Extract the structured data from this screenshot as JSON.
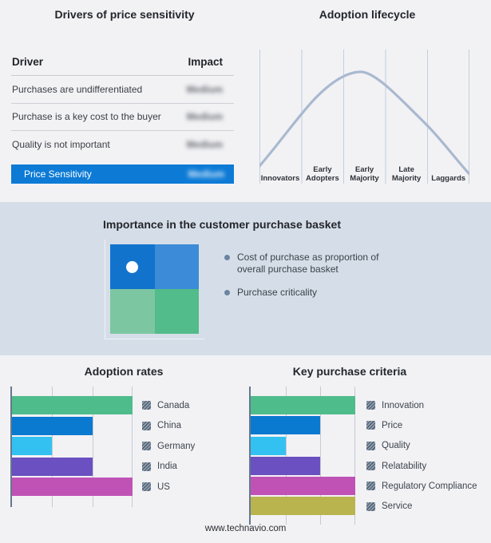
{
  "page": {
    "footer_link": "www.technavio.com"
  },
  "drivers": {
    "title": "Drivers of price sensitivity",
    "col_driver": "Driver",
    "col_impact": "Impact",
    "rows": [
      {
        "driver": "Purchases are undifferentiated",
        "impact": "Medium",
        "impact_blurred": true
      },
      {
        "driver": "Purchase is a key cost to the buyer",
        "impact": "Medium",
        "impact_blurred": true
      },
      {
        "driver": "Quality is not important",
        "impact": "Medium",
        "impact_blurred": true
      }
    ],
    "highlight": {
      "label": "Price Sensitivity",
      "impact": "Medium",
      "impact_blurred": true
    },
    "highlight_color": "#0d7bd6"
  },
  "basket": {
    "title": "Importance in the customer purchase basket",
    "legend": [
      "Cost of purchase as proportion of overall purchase basket",
      "Purchase criticality"
    ],
    "bullet_color": "#6d84a1",
    "quadrant_colors": {
      "top_left": "#1273cd",
      "top_right": "#3b8bd8",
      "bottom_left": "#7cc7a2",
      "bottom_right": "#52bc8a"
    }
  },
  "chart_data": [
    {
      "type": "bar",
      "orientation": "horizontal",
      "title": "Adoption rates",
      "categories": [
        "Canada",
        "China",
        "Germany",
        "India",
        "US"
      ],
      "values": [
        3,
        2,
        1,
        2,
        3
      ],
      "value_note": "relative units read from unlabeled gridlines; no numeric tick labels shown",
      "xlim": [
        0,
        3
      ],
      "grid": true,
      "legend_position": "right",
      "colors": [
        "#4fbc8c",
        "#0a79d0",
        "#33c1f2",
        "#6a50c0",
        "#c052b6"
      ]
    },
    {
      "type": "bar",
      "orientation": "horizontal",
      "title": "Key purchase criteria",
      "categories": [
        "Innovation",
        "Price",
        "Quality",
        "Relatability",
        "Regulatory Compliance",
        "Service"
      ],
      "values": [
        3,
        2,
        1,
        2,
        3,
        3
      ],
      "value_note": "relative units read from unlabeled gridlines; no numeric tick labels shown",
      "xlim": [
        0,
        3
      ],
      "grid": true,
      "legend_position": "right",
      "colors": [
        "#4fbc8c",
        "#0a79d0",
        "#33c1f2",
        "#6a50c0",
        "#c052b6",
        "#bab44e"
      ]
    },
    {
      "type": "line",
      "title": "Adoption lifecycle",
      "x_segments": [
        "Innovators",
        "Early Adopters",
        "Early Majority",
        "Late Majority",
        "Laggards"
      ],
      "shape": "bell curve peaking in the Early Majority segment",
      "points_norm": [
        [
          0,
          0.13
        ],
        [
          0.2,
          0.52
        ],
        [
          0.4,
          0.79
        ],
        [
          0.48,
          0.84
        ],
        [
          0.6,
          0.73
        ],
        [
          0.8,
          0.43
        ],
        [
          1,
          0.07
        ]
      ],
      "color": "#a9b9cf",
      "gridline_color": "#c3cedc"
    }
  ]
}
